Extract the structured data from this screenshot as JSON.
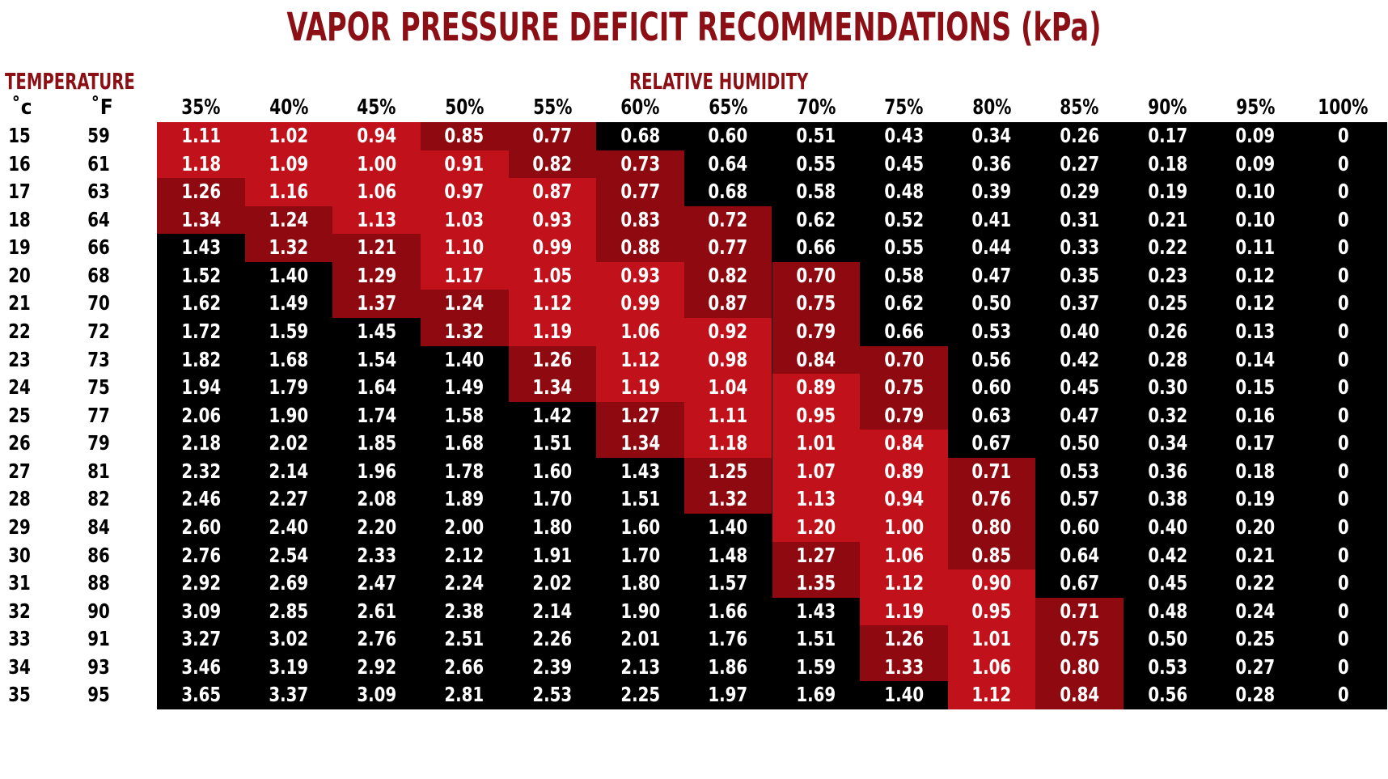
{
  "chart_data": {
    "type": "table",
    "title": "VAPOR PRESSURE DEFICIT RECOMMENDATIONS (kPa)",
    "row_header": "TEMPERATURE",
    "column_header": "RELATIVE HUMIDITY",
    "unit_c": "˚c",
    "unit_f": "˚F",
    "columns": [
      "35%",
      "40%",
      "45%",
      "50%",
      "55%",
      "60%",
      "65%",
      "70%",
      "75%",
      "80%",
      "85%",
      "90%",
      "95%",
      "100%"
    ],
    "temps_c": [
      "15",
      "16",
      "17",
      "18",
      "19",
      "20",
      "21",
      "22",
      "23",
      "24",
      "25",
      "26",
      "27",
      "28",
      "29",
      "30",
      "31",
      "32",
      "33",
      "34",
      "35"
    ],
    "temps_f": [
      "59",
      "61",
      "63",
      "64",
      "66",
      "68",
      "70",
      "72",
      "73",
      "75",
      "77",
      "79",
      "81",
      "82",
      "84",
      "86",
      "88",
      "90",
      "91",
      "93",
      "95"
    ],
    "values": [
      [
        "1.11",
        "1.02",
        "0.94",
        "0.85",
        "0.77",
        "0.68",
        "0.60",
        "0.51",
        "0.43",
        "0.34",
        "0.26",
        "0.17",
        "0.09",
        "0"
      ],
      [
        "1.18",
        "1.09",
        "1.00",
        "0.91",
        "0.82",
        "0.73",
        "0.64",
        "0.55",
        "0.45",
        "0.36",
        "0.27",
        "0.18",
        "0.09",
        "0"
      ],
      [
        "1.26",
        "1.16",
        "1.06",
        "0.97",
        "0.87",
        "0.77",
        "0.68",
        "0.58",
        "0.48",
        "0.39",
        "0.29",
        "0.19",
        "0.10",
        "0"
      ],
      [
        "1.34",
        "1.24",
        "1.13",
        "1.03",
        "0.93",
        "0.83",
        "0.72",
        "0.62",
        "0.52",
        "0.41",
        "0.31",
        "0.21",
        "0.10",
        "0"
      ],
      [
        "1.43",
        "1.32",
        "1.21",
        "1.10",
        "0.99",
        "0.88",
        "0.77",
        "0.66",
        "0.55",
        "0.44",
        "0.33",
        "0.22",
        "0.11",
        "0"
      ],
      [
        "1.52",
        "1.40",
        "1.29",
        "1.17",
        "1.05",
        "0.93",
        "0.82",
        "0.70",
        "0.58",
        "0.47",
        "0.35",
        "0.23",
        "0.12",
        "0"
      ],
      [
        "1.62",
        "1.49",
        "1.37",
        "1.24",
        "1.12",
        "0.99",
        "0.87",
        "0.75",
        "0.62",
        "0.50",
        "0.37",
        "0.25",
        "0.12",
        "0"
      ],
      [
        "1.72",
        "1.59",
        "1.45",
        "1.32",
        "1.19",
        "1.06",
        "0.92",
        "0.79",
        "0.66",
        "0.53",
        "0.40",
        "0.26",
        "0.13",
        "0"
      ],
      [
        "1.82",
        "1.68",
        "1.54",
        "1.40",
        "1.26",
        "1.12",
        "0.98",
        "0.84",
        "0.70",
        "0.56",
        "0.42",
        "0.28",
        "0.14",
        "0"
      ],
      [
        "1.94",
        "1.79",
        "1.64",
        "1.49",
        "1.34",
        "1.19",
        "1.04",
        "0.89",
        "0.75",
        "0.60",
        "0.45",
        "0.30",
        "0.15",
        "0"
      ],
      [
        "2.06",
        "1.90",
        "1.74",
        "1.58",
        "1.42",
        "1.27",
        "1.11",
        "0.95",
        "0.79",
        "0.63",
        "0.47",
        "0.32",
        "0.16",
        "0"
      ],
      [
        "2.18",
        "2.02",
        "1.85",
        "1.68",
        "1.51",
        "1.34",
        "1.18",
        "1.01",
        "0.84",
        "0.67",
        "0.50",
        "0.34",
        "0.17",
        "0"
      ],
      [
        "2.32",
        "2.14",
        "1.96",
        "1.78",
        "1.60",
        "1.43",
        "1.25",
        "1.07",
        "0.89",
        "0.71",
        "0.53",
        "0.36",
        "0.18",
        "0"
      ],
      [
        "2.46",
        "2.27",
        "2.08",
        "1.89",
        "1.70",
        "1.51",
        "1.32",
        "1.13",
        "0.94",
        "0.76",
        "0.57",
        "0.38",
        "0.19",
        "0"
      ],
      [
        "2.60",
        "2.40",
        "2.20",
        "2.00",
        "1.80",
        "1.60",
        "1.40",
        "1.20",
        "1.00",
        "0.80",
        "0.60",
        "0.40",
        "0.20",
        "0"
      ],
      [
        "2.76",
        "2.54",
        "2.33",
        "2.12",
        "1.91",
        "1.70",
        "1.48",
        "1.27",
        "1.06",
        "0.85",
        "0.64",
        "0.42",
        "0.21",
        "0"
      ],
      [
        "2.92",
        "2.69",
        "2.47",
        "2.24",
        "2.02",
        "1.80",
        "1.57",
        "1.35",
        "1.12",
        "0.90",
        "0.67",
        "0.45",
        "0.22",
        "0"
      ],
      [
        "3.09",
        "2.85",
        "2.61",
        "2.38",
        "2.14",
        "1.90",
        "1.66",
        "1.43",
        "1.19",
        "0.95",
        "0.71",
        "0.48",
        "0.24",
        "0"
      ],
      [
        "3.27",
        "3.02",
        "2.76",
        "2.51",
        "2.26",
        "2.01",
        "1.76",
        "1.51",
        "1.26",
        "1.01",
        "0.75",
        "0.50",
        "0.25",
        "0"
      ],
      [
        "3.46",
        "3.19",
        "2.92",
        "2.66",
        "2.39",
        "2.13",
        "1.86",
        "1.59",
        "1.33",
        "1.06",
        "0.80",
        "0.53",
        "0.27",
        "0"
      ],
      [
        "3.65",
        "3.37",
        "3.09",
        "2.81",
        "2.53",
        "2.25",
        "1.97",
        "1.69",
        "1.40",
        "1.12",
        "0.84",
        "0.56",
        "0.28",
        "0"
      ]
    ],
    "colors": {
      "background": "#000000",
      "bright_red": "#c1111a",
      "dark_red": "#8e0a10",
      "text": "#ffffff",
      "header": "#8b0f14"
    },
    "cell_shading": [
      [
        "bright",
        "bright",
        "bright",
        "dark",
        "dark",
        "none",
        "none",
        "none",
        "none",
        "none",
        "none",
        "none",
        "none",
        "none"
      ],
      [
        "bright",
        "bright",
        "bright",
        "bright",
        "dark",
        "dark",
        "none",
        "none",
        "none",
        "none",
        "none",
        "none",
        "none",
        "none"
      ],
      [
        "dark",
        "bright",
        "bright",
        "bright",
        "bright",
        "dark",
        "none",
        "none",
        "none",
        "none",
        "none",
        "none",
        "none",
        "none"
      ],
      [
        "dark",
        "dark",
        "bright",
        "bright",
        "bright",
        "dark",
        "dark",
        "none",
        "none",
        "none",
        "none",
        "none",
        "none",
        "none"
      ],
      [
        "none",
        "dark",
        "dark",
        "bright",
        "bright",
        "dark",
        "dark",
        "none",
        "none",
        "none",
        "none",
        "none",
        "none",
        "none"
      ],
      [
        "none",
        "none",
        "dark",
        "bright",
        "bright",
        "bright",
        "dark",
        "dark",
        "none",
        "none",
        "none",
        "none",
        "none",
        "none"
      ],
      [
        "none",
        "none",
        "dark",
        "dark",
        "bright",
        "bright",
        "dark",
        "dark",
        "none",
        "none",
        "none",
        "none",
        "none",
        "none"
      ],
      [
        "none",
        "none",
        "none",
        "dark",
        "bright",
        "bright",
        "bright",
        "dark",
        "none",
        "none",
        "none",
        "none",
        "none",
        "none"
      ],
      [
        "none",
        "none",
        "none",
        "none",
        "dark",
        "bright",
        "bright",
        "dark",
        "dark",
        "none",
        "none",
        "none",
        "none",
        "none"
      ],
      [
        "none",
        "none",
        "none",
        "none",
        "dark",
        "bright",
        "bright",
        "bright",
        "dark",
        "none",
        "none",
        "none",
        "none",
        "none"
      ],
      [
        "none",
        "none",
        "none",
        "none",
        "none",
        "dark",
        "bright",
        "bright",
        "dark",
        "none",
        "none",
        "none",
        "none",
        "none"
      ],
      [
        "none",
        "none",
        "none",
        "none",
        "none",
        "dark",
        "bright",
        "bright",
        "bright",
        "none",
        "none",
        "none",
        "none",
        "none"
      ],
      [
        "none",
        "none",
        "none",
        "none",
        "none",
        "none",
        "dark",
        "bright",
        "bright",
        "dark",
        "none",
        "none",
        "none",
        "none"
      ],
      [
        "none",
        "none",
        "none",
        "none",
        "none",
        "none",
        "dark",
        "bright",
        "bright",
        "dark",
        "none",
        "none",
        "none",
        "none"
      ],
      [
        "none",
        "none",
        "none",
        "none",
        "none",
        "none",
        "none",
        "bright",
        "bright",
        "dark",
        "none",
        "none",
        "none",
        "none"
      ],
      [
        "none",
        "none",
        "none",
        "none",
        "none",
        "none",
        "none",
        "dark",
        "bright",
        "dark",
        "none",
        "none",
        "none",
        "none"
      ],
      [
        "none",
        "none",
        "none",
        "none",
        "none",
        "none",
        "none",
        "dark",
        "bright",
        "bright",
        "none",
        "none",
        "none",
        "none"
      ],
      [
        "none",
        "none",
        "none",
        "none",
        "none",
        "none",
        "none",
        "none",
        "bright",
        "bright",
        "dark",
        "none",
        "none",
        "none"
      ],
      [
        "none",
        "none",
        "none",
        "none",
        "none",
        "none",
        "none",
        "none",
        "dark",
        "bright",
        "dark",
        "none",
        "none",
        "none"
      ],
      [
        "none",
        "none",
        "none",
        "none",
        "none",
        "none",
        "none",
        "none",
        "dark",
        "bright",
        "dark",
        "none",
        "none",
        "none"
      ],
      [
        "none",
        "none",
        "none",
        "none",
        "none",
        "none",
        "none",
        "none",
        "none",
        "bright",
        "dark",
        "none",
        "none",
        "none"
      ]
    ]
  }
}
